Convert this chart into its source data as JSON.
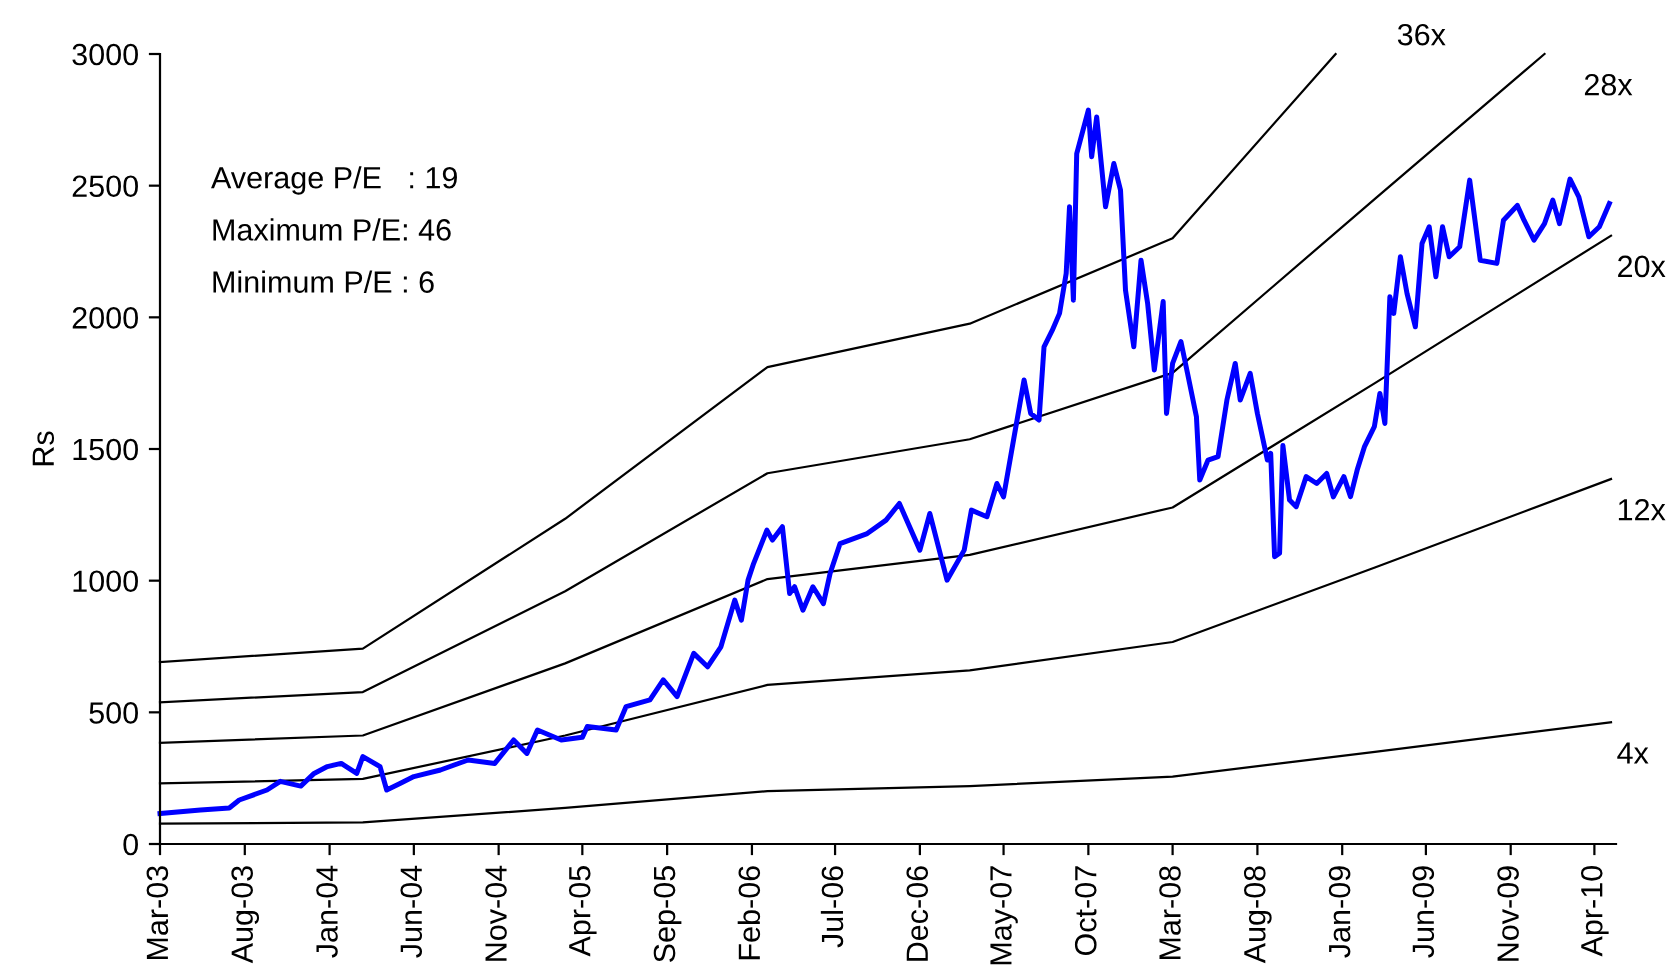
{
  "chart_data": {
    "type": "line",
    "ylabel": "Rs",
    "annotations": [
      "Average P/E   : 19",
      "Maximum P/E: 46",
      "Minimum P/E : 6"
    ],
    "xlim": [
      "2003-03-01",
      "2010-05-10"
    ],
    "ylim": [
      0,
      3000
    ],
    "yticks": [
      0,
      500,
      1000,
      1500,
      2000,
      2500,
      3000
    ],
    "xticks": [
      {
        "value": "2003-03-01",
        "label": "Mar-03"
      },
      {
        "value": "2003-08-01",
        "label": "Aug-03"
      },
      {
        "value": "2004-01-01",
        "label": "Jan-04"
      },
      {
        "value": "2004-06-01",
        "label": "Jun-04"
      },
      {
        "value": "2004-11-01",
        "label": "Nov-04"
      },
      {
        "value": "2005-04-01",
        "label": "Apr-05"
      },
      {
        "value": "2005-09-01",
        "label": "Sep-05"
      },
      {
        "value": "2006-02-01",
        "label": "Feb-06"
      },
      {
        "value": "2006-07-01",
        "label": "Jul-06"
      },
      {
        "value": "2006-12-01",
        "label": "Dec-06"
      },
      {
        "value": "2007-05-01",
        "label": "May-07"
      },
      {
        "value": "2007-10-01",
        "label": "Oct-07"
      },
      {
        "value": "2008-03-01",
        "label": "Mar-08"
      },
      {
        "value": "2008-08-01",
        "label": "Aug-08"
      },
      {
        "value": "2009-01-01",
        "label": "Jan-09"
      },
      {
        "value": "2009-06-01",
        "label": "Jun-09"
      },
      {
        "value": "2009-11-01",
        "label": "Nov-09"
      },
      {
        "value": "2010-04-01",
        "label": "Apr-10"
      }
    ],
    "grid": false,
    "legend": false,
    "marker": "none",
    "line_style": "solid",
    "series": [
      {
        "name": "36x",
        "color": "#000000",
        "x": [
          "2003-03-01",
          "2004-03-01",
          "2005-03-01",
          "2006-03-01",
          "2007-03-01",
          "2008-03-01",
          "2008-12-20"
        ],
        "values": [
          691,
          742,
          1235,
          1811,
          1976,
          2300,
          3000
        ]
      },
      {
        "name": "28x",
        "color": "#000000",
        "x": [
          "2003-03-01",
          "2004-03-01",
          "2005-03-01",
          "2006-03-01",
          "2007-03-01",
          "2008-03-01",
          "2009-03-01",
          "2010-01-01"
        ],
        "values": [
          538,
          577,
          960,
          1408,
          1537,
          1789,
          2450,
          3000
        ]
      },
      {
        "name": "20x",
        "color": "#000000",
        "x": [
          "2003-03-01",
          "2004-03-01",
          "2005-03-01",
          "2006-03-01",
          "2007-03-01",
          "2008-03-01",
          "2009-03-01",
          "2010-05-01"
        ],
        "values": [
          384,
          412,
          686,
          1006,
          1098,
          1278,
          1750,
          2310
        ]
      },
      {
        "name": "12x",
        "color": "#000000",
        "x": [
          "2003-03-01",
          "2004-03-01",
          "2005-03-01",
          "2006-03-01",
          "2007-03-01",
          "2008-03-01",
          "2009-03-01",
          "2010-05-01"
        ],
        "values": [
          230,
          247,
          412,
          604,
          659,
          767,
          1050,
          1386
        ]
      },
      {
        "name": "4x",
        "color": "#000000",
        "x": [
          "2003-03-01",
          "2004-03-01",
          "2005-03-01",
          "2006-03-01",
          "2007-03-01",
          "2008-03-01",
          "2009-03-01",
          "2010-05-01"
        ],
        "values": [
          77,
          82,
          137,
          201,
          220,
          256,
          350,
          462
        ]
      },
      {
        "color": "#0000ff",
        "x": [
          "2003-03-01",
          "2003-05-13",
          "2003-07-04",
          "2003-07-22",
          "2003-09-10",
          "2003-10-04",
          "2003-11-10",
          "2003-12-04",
          "2003-12-28",
          "2004-01-22",
          "2004-02-19",
          "2004-03-01",
          "2004-04-01",
          "2004-04-13",
          "2004-05-07",
          "2004-06-01",
          "2004-07-19",
          "2004-09-07",
          "2004-10-25",
          "2004-11-28",
          "2004-12-22",
          "2005-01-10",
          "2005-02-22",
          "2005-04-01",
          "2005-04-10",
          "2005-06-01",
          "2005-06-19",
          "2005-08-01",
          "2005-08-25",
          "2005-09-19",
          "2005-10-19",
          "2005-11-13",
          "2005-12-07",
          "2006-01-01",
          "2006-01-13",
          "2006-01-25",
          "2006-02-04",
          "2006-02-28",
          "2006-03-10",
          "2006-03-28",
          "2006-04-10",
          "2006-04-19",
          "2006-05-04",
          "2006-05-22",
          "2006-06-10",
          "2006-06-22",
          "2006-07-10",
          "2006-08-28",
          "2006-10-01",
          "2006-10-25",
          "2006-12-01",
          "2006-12-19",
          "2007-01-19",
          "2007-02-19",
          "2007-03-04",
          "2007-04-01",
          "2007-04-19",
          "2007-05-01",
          "2007-05-19",
          "2007-06-07",
          "2007-06-19",
          "2007-07-04",
          "2007-07-13",
          "2007-07-28",
          "2007-08-10",
          "2007-08-22",
          "2007-08-28",
          "2007-09-04",
          "2007-09-10",
          "2007-10-01",
          "2007-10-07",
          "2007-10-16",
          "2007-11-01",
          "2007-11-16",
          "2007-11-28",
          "2007-12-07",
          "2007-12-22",
          "2008-01-04",
          "2008-01-16",
          "2008-01-28",
          "2008-02-13",
          "2008-02-19",
          "2008-03-01",
          "2008-03-16",
          "2008-03-28",
          "2008-04-13",
          "2008-04-19",
          "2008-05-04",
          "2008-05-22",
          "2008-06-07",
          "2008-06-22",
          "2008-07-01",
          "2008-07-19",
          "2008-08-01",
          "2008-08-19",
          "2008-08-25",
          "2008-09-01",
          "2008-09-10",
          "2008-09-16",
          "2008-09-28",
          "2008-10-10",
          "2008-10-28",
          "2008-11-16",
          "2008-12-04",
          "2008-12-16",
          "2009-01-04",
          "2009-01-16",
          "2009-01-28",
          "2009-02-10",
          "2009-02-28",
          "2009-03-10",
          "2009-03-19",
          "2009-03-28",
          "2009-04-04",
          "2009-04-16",
          "2009-04-28",
          "2009-05-13",
          "2009-05-25",
          "2009-06-07",
          "2009-06-19",
          "2009-07-01",
          "2009-07-13",
          "2009-08-01",
          "2009-08-19",
          "2009-09-07",
          "2009-10-07",
          "2009-10-19",
          "2009-11-13",
          "2009-11-25",
          "2009-12-13",
          "2010-01-01",
          "2010-01-16",
          "2010-01-28",
          "2010-02-16",
          "2010-03-04",
          "2010-03-22",
          "2010-04-10",
          "2010-04-28"
        ],
        "values": [
          116,
          129,
          137,
          167,
          205,
          238,
          220,
          268,
          294,
          306,
          268,
          332,
          294,
          205,
          230,
          256,
          281,
          319,
          306,
          395,
          344,
          433,
          395,
          405,
          446,
          433,
          522,
          547,
          623,
          560,
          724,
          673,
          749,
          926,
          850,
          1002,
          1065,
          1192,
          1154,
          1205,
          951,
          977,
          888,
          977,
          913,
          1027,
          1141,
          1179,
          1230,
          1293,
          1116,
          1255,
          1002,
          1116,
          1268,
          1243,
          1369,
          1318,
          1534,
          1762,
          1635,
          1610,
          1888,
          1951,
          2015,
          2167,
          2420,
          2065,
          2622,
          2787,
          2610,
          2761,
          2420,
          2584,
          2483,
          2103,
          1888,
          2217,
          2052,
          1800,
          2060,
          1635,
          1825,
          1908,
          1787,
          1622,
          1382,
          1458,
          1471,
          1686,
          1825,
          1686,
          1787,
          1635,
          1458,
          1483,
          1091,
          1104,
          1513,
          1306,
          1281,
          1395,
          1369,
          1407,
          1318,
          1395,
          1319,
          1420,
          1508,
          1585,
          1711,
          1597,
          2078,
          2015,
          2230,
          2090,
          1964,
          2280,
          2344,
          2154,
          2344,
          2230,
          2268,
          2521,
          2217,
          2205,
          2369,
          2425,
          2369,
          2293,
          2356,
          2445,
          2356,
          2525,
          2457,
          2306,
          2344,
          2432
        ]
      }
    ]
  }
}
